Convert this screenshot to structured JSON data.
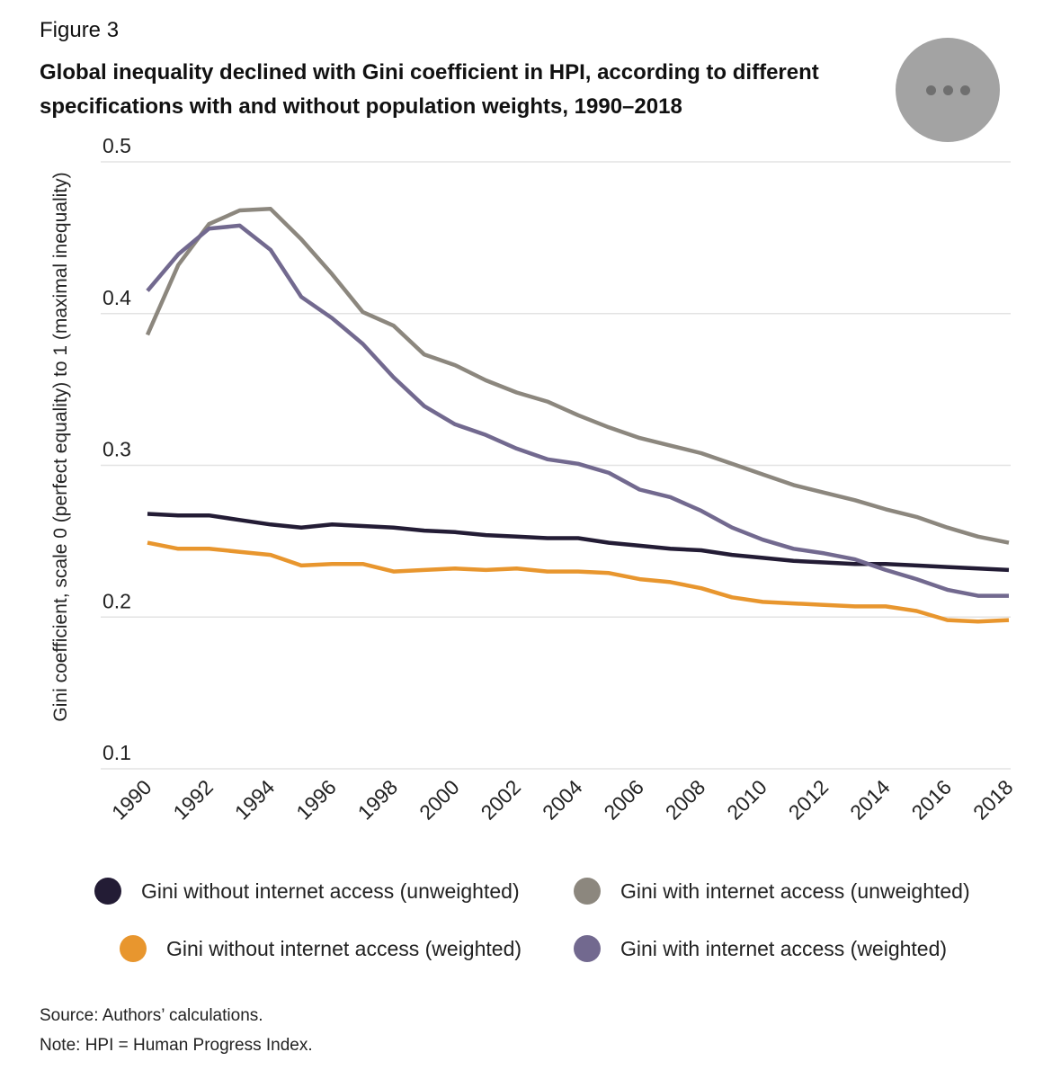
{
  "figure": {
    "label": "Figure 3",
    "title": "Global inequality declined with Gini coefficient in HPI, according to different specifications with and without population weights, 1990–2018"
  },
  "more_button": {
    "icon": "more-horizontal-icon"
  },
  "chart_data": {
    "type": "line",
    "title": "Global inequality declined with Gini coefficient in HPI, according to different specifications with and without population weights, 1990–2018",
    "xlabel": "",
    "ylabel": "Gini coefficient, scale 0 (perfect equality) to 1 (maximal inequality)",
    "ylim": [
      0.1,
      0.5
    ],
    "yticks": [
      "0.1",
      "0.2",
      "0.3",
      "0.4",
      "0.5"
    ],
    "ytick_values": [
      0.1,
      0.2,
      0.3,
      0.4,
      0.5
    ],
    "xlim": [
      1990,
      2018
    ],
    "xticks": [
      "1990",
      "1992",
      "1994",
      "1996",
      "1998",
      "2000",
      "2002",
      "2004",
      "2006",
      "2008",
      "2010",
      "2012",
      "2014",
      "2016",
      "2018"
    ],
    "grid": true,
    "x": [
      1990,
      1991,
      1992,
      1993,
      1994,
      1995,
      1996,
      1997,
      1998,
      1999,
      2000,
      2001,
      2002,
      2003,
      2004,
      2005,
      2006,
      2007,
      2008,
      2009,
      2010,
      2011,
      2012,
      2013,
      2014,
      2015,
      2016,
      2017,
      2018
    ],
    "series": [
      {
        "name": "Gini without internet access (unweighted)",
        "color": "#231c35",
        "values": [
          0.268,
          0.267,
          0.267,
          0.264,
          0.261,
          0.259,
          0.261,
          0.26,
          0.259,
          0.257,
          0.256,
          0.254,
          0.253,
          0.252,
          0.252,
          0.249,
          0.247,
          0.245,
          0.244,
          0.241,
          0.239,
          0.237,
          0.236,
          0.235,
          0.235,
          0.234,
          0.233,
          0.232,
          0.231
        ]
      },
      {
        "name": "Gini with internet access (unweighted)",
        "color": "#8c877e",
        "values": [
          0.386,
          0.432,
          0.459,
          0.468,
          0.469,
          0.449,
          0.426,
          0.401,
          0.392,
          0.373,
          0.366,
          0.356,
          0.348,
          0.342,
          0.333,
          0.325,
          0.318,
          0.313,
          0.308,
          0.301,
          0.294,
          0.287,
          0.282,
          0.277,
          0.271,
          0.266,
          0.259,
          0.253,
          0.249
        ]
      },
      {
        "name": "Gini without internet access (weighted)",
        "color": "#e8962e",
        "values": [
          0.249,
          0.245,
          0.245,
          0.243,
          0.241,
          0.234,
          0.235,
          0.235,
          0.23,
          0.231,
          0.232,
          0.231,
          0.232,
          0.23,
          0.23,
          0.229,
          0.225,
          0.223,
          0.219,
          0.213,
          0.21,
          0.209,
          0.208,
          0.207,
          0.207,
          0.204,
          0.198,
          0.197,
          0.198
        ]
      },
      {
        "name": "Gini with internet access (weighted)",
        "color": "#72698f",
        "values": [
          0.415,
          0.439,
          0.456,
          0.458,
          0.442,
          0.411,
          0.397,
          0.38,
          0.358,
          0.339,
          0.327,
          0.32,
          0.311,
          0.304,
          0.301,
          0.295,
          0.284,
          0.279,
          0.27,
          0.259,
          0.251,
          0.245,
          0.242,
          0.238,
          0.231,
          0.225,
          0.218,
          0.214,
          0.214
        ]
      }
    ],
    "legend": "bottom"
  },
  "source": {
    "source_text": "Source: Authors’ calculations.",
    "note_text": "Note: HPI = Human Progress Index."
  }
}
